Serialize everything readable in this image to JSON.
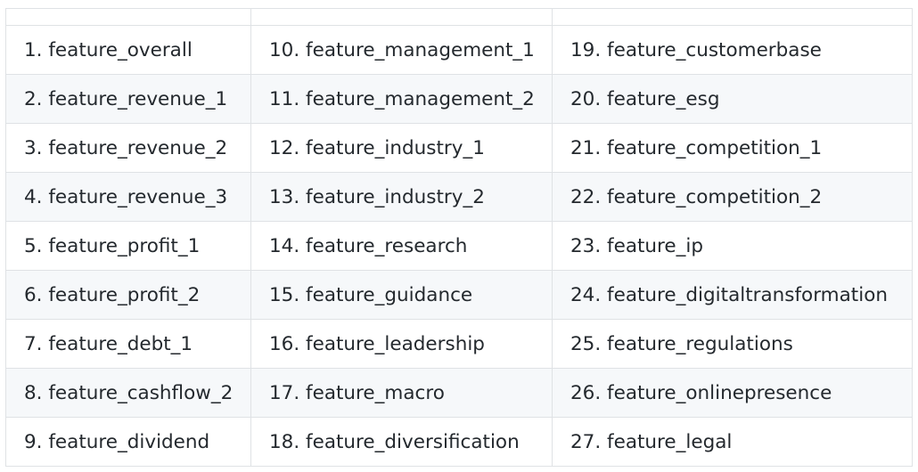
{
  "table": {
    "headers": [
      "",
      "",
      ""
    ],
    "rows": [
      [
        "1. feature_overall",
        "10. feature_management_1",
        "19. feature_customerbase"
      ],
      [
        "2. feature_revenue_1",
        "11. feature_management_2",
        "20. feature_esg"
      ],
      [
        "3. feature_revenue_2",
        "12. feature_industry_1",
        "21. feature_competition_1"
      ],
      [
        "4. feature_revenue_3",
        "13. feature_industry_2",
        "22. feature_competition_2"
      ],
      [
        "5. feature_profit_1",
        "14. feature_research",
        "23. feature_ip"
      ],
      [
        "6. feature_profit_2",
        "15. feature_guidance",
        "24. feature_digitaltransformation"
      ],
      [
        "7. feature_debt_1",
        "16. feature_leadership",
        "25. feature_regulations"
      ],
      [
        "8. feature_cashflow_2",
        "17. feature_macro",
        "26. feature_onlinepresence"
      ],
      [
        "9. feature_dividend",
        "18. feature_diversification",
        "27. feature_legal"
      ]
    ]
  },
  "colors": {
    "text": "#24292e",
    "border": "#dfe2e5",
    "row_alt_background": "#f6f8fa",
    "background": "#ffffff"
  }
}
